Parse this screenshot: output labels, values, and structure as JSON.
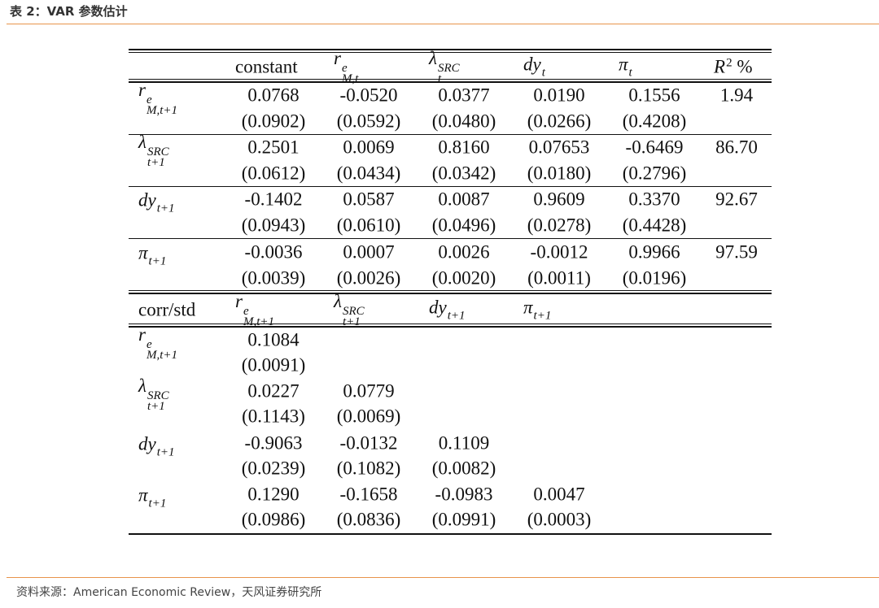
{
  "header": {
    "title": "表 2：VAR 参数估计"
  },
  "table": {
    "columns": [
      {
        "base": "constant"
      },
      {
        "base": "r",
        "sup": "e",
        "sub": "M,t"
      },
      {
        "base": "λ",
        "sup": "SRC",
        "sub": "t"
      },
      {
        "base": "dy",
        "sub": "t"
      },
      {
        "base": "π",
        "sub": "t"
      },
      {
        "base": "R",
        "sup": "2",
        "after": " %"
      }
    ],
    "rows": [
      {
        "label": {
          "base": "r",
          "sup": "e",
          "sub": "M,t+1"
        },
        "estimates": [
          "0.0768",
          "-0.0520",
          "0.0377",
          "0.0190",
          "0.1556"
        ],
        "errors": [
          "(0.0902)",
          "(0.0592)",
          "(0.0480)",
          "(0.0266)",
          "(0.4208)"
        ],
        "r2": "1.94"
      },
      {
        "label": {
          "base": "λ",
          "sup": "SRC",
          "sub": "t+1"
        },
        "estimates": [
          "0.2501",
          "0.0069",
          "0.8160",
          "0.07653",
          "-0.6469"
        ],
        "errors": [
          "(0.0612)",
          "(0.0434)",
          "(0.0342)",
          "(0.0180)",
          "(0.2796)"
        ],
        "r2": "86.70"
      },
      {
        "label": {
          "base": "dy",
          "sub": "t+1"
        },
        "estimates": [
          "-0.1402",
          "0.0587",
          "0.0087",
          "0.9609",
          "0.3370"
        ],
        "errors": [
          "(0.0943)",
          "(0.0610)",
          "(0.0496)",
          "(0.0278)",
          "(0.4428)"
        ],
        "r2": "92.67"
      },
      {
        "label": {
          "base": "π",
          "sub": "t+1"
        },
        "estimates": [
          "-0.0036",
          "0.0007",
          "0.0026",
          "-0.0012",
          "0.9966"
        ],
        "errors": [
          "(0.0039)",
          "(0.0026)",
          "(0.0020)",
          "(0.0011)",
          "(0.0196)"
        ],
        "r2": "97.59"
      }
    ]
  },
  "corr_table": {
    "columns": [
      {
        "base": "corr/std"
      },
      {
        "base": "r",
        "sup": "e",
        "sub": "M,t+1"
      },
      {
        "base": "λ",
        "sup": "SRC",
        "sub": "t+1"
      },
      {
        "base": "dy",
        "sub": "t+1"
      },
      {
        "base": "π",
        "sub": "t+1"
      }
    ],
    "rows": [
      {
        "label": {
          "base": "r",
          "sup": "e",
          "sub": "M,t+1"
        },
        "estimates": [
          "0.1084"
        ],
        "errors": [
          "(0.0091)"
        ]
      },
      {
        "label": {
          "base": "λ",
          "sup": "SRC",
          "sub": "t+1"
        },
        "estimates": [
          "0.0227",
          "0.0779"
        ],
        "errors": [
          "(0.1143)",
          "(0.0069)"
        ]
      },
      {
        "label": {
          "base": "dy",
          "sub": "t+1"
        },
        "estimates": [
          "-0.9063",
          "-0.0132",
          "0.1109"
        ],
        "errors": [
          "(0.0239)",
          "(0.1082)",
          "(0.0082)"
        ]
      },
      {
        "label": {
          "base": "π",
          "sub": "t+1"
        },
        "estimates": [
          "0.1290",
          "-0.1658",
          "-0.0983",
          "0.0047"
        ],
        "errors": [
          "(0.0986)",
          "(0.0836)",
          "(0.0991)",
          "(0.0003)"
        ]
      }
    ]
  },
  "footer": {
    "source": "资料来源：American Economic Review，天风证券研究所"
  }
}
